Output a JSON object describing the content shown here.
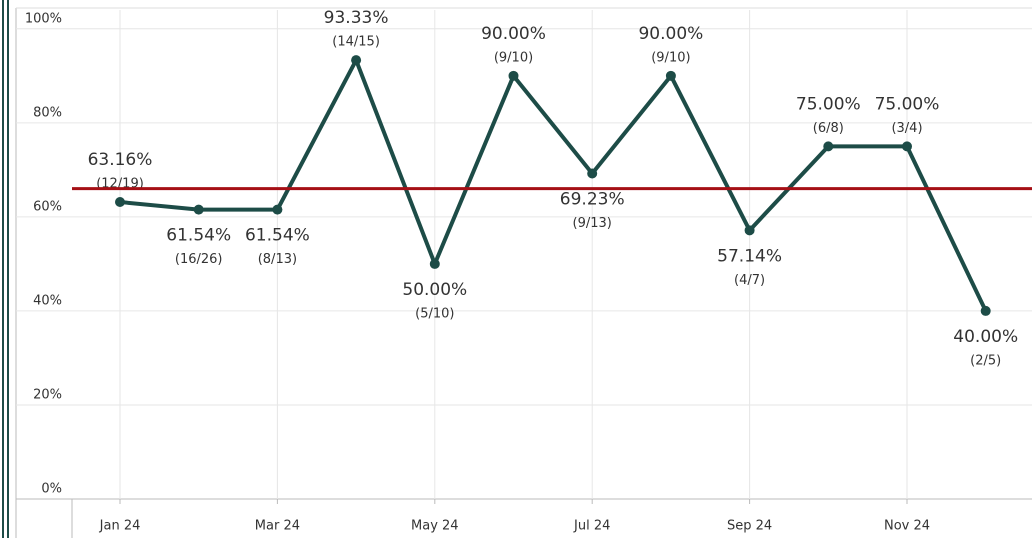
{
  "chart_data": {
    "type": "line",
    "categories": [
      "Jan 24",
      null,
      "Mar 24",
      null,
      "May 24",
      null,
      "Jul 24",
      null,
      "Sep 24",
      null,
      "Nov 24",
      null
    ],
    "series": [
      {
        "color": "#1d4c47",
        "values": [
          63.16,
          61.54,
          61.54,
          93.33,
          50.0,
          90.0,
          69.23,
          90.0,
          57.14,
          75.0,
          75.0,
          40.0
        ],
        "value_labels": [
          "63.16%",
          "61.54%",
          "61.54%",
          "93.33%",
          "50.00%",
          "90.00%",
          "69.23%",
          "90.00%",
          "57.14%",
          "75.00%",
          "75.00%",
          "40.00%"
        ],
        "counts": [
          "(12/19)",
          "(16/26)",
          "(8/13)",
          "(14/15)",
          "(5/10)",
          "(9/10)",
          "(9/13)",
          "(9/10)",
          "(4/7)",
          "(6/8)",
          "(3/4)",
          "(2/5)"
        ]
      }
    ],
    "reference_line": {
      "value": 66,
      "color": "#a50f15"
    },
    "ylim": [
      0,
      104
    ],
    "yticks": [
      {
        "value": 0,
        "label": "0%"
      },
      {
        "value": 20,
        "label": "20%"
      },
      {
        "value": 40,
        "label": "40%"
      },
      {
        "value": 60,
        "label": "60%"
      },
      {
        "value": 80,
        "label": "80%"
      },
      {
        "value": 100,
        "label": "100%"
      }
    ],
    "grid": true
  }
}
